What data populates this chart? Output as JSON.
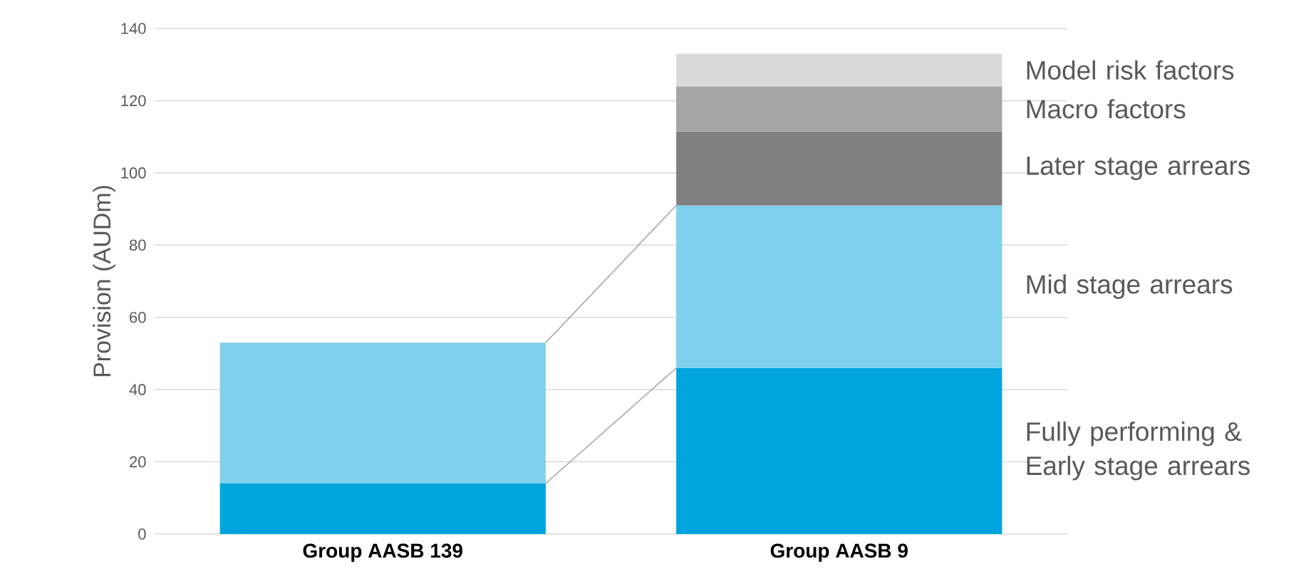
{
  "chart_data": {
    "type": "bar",
    "stacked": true,
    "ylabel": "Provision (AUDm)",
    "categories": [
      "Group AASB 139",
      "Group AASB 9"
    ],
    "ylim": [
      0,
      140
    ],
    "yticks": [
      0,
      20,
      40,
      60,
      80,
      100,
      120,
      140
    ],
    "grid": "y",
    "series": [
      {
        "name": "Fully performing & Early stage arrears",
        "color": "#00a5df",
        "values": [
          14,
          46
        ]
      },
      {
        "name": "Mid stage arrears",
        "color": "#7fd0ee",
        "values": [
          39,
          45
        ]
      },
      {
        "name": "Later stage arrears",
        "color": "#808080",
        "values": [
          null,
          20.5
        ]
      },
      {
        "name": "Macro factors",
        "color": "#a5a5a5",
        "values": [
          null,
          12.5
        ]
      },
      {
        "name": "Model risk factors",
        "color": "#d9d9d9",
        "values": [
          null,
          9
        ]
      }
    ]
  }
}
